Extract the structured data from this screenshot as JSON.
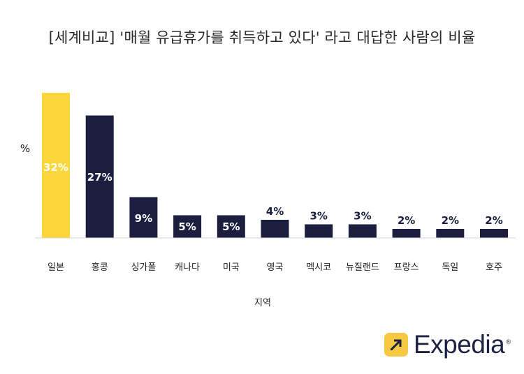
{
  "chart_data": {
    "type": "bar",
    "title": "[세계비교] '매월 유급휴가를 취득하고 있다' 라고 대답한 사람의 비율",
    "xlabel": "지역",
    "ylabel": "%",
    "categories": [
      "일본",
      "홍콩",
      "싱가폴",
      "캐나다",
      "미국",
      "영국",
      "멕시코",
      "뉴질랜드",
      "프랑스",
      "독일",
      "호주"
    ],
    "values": [
      32,
      27,
      9,
      5,
      5,
      4,
      3,
      3,
      2,
      2,
      2
    ],
    "data_labels": [
      "32%",
      "27%",
      "9%",
      "5%",
      "5%",
      "4%",
      "3%",
      "3%",
      "2%",
      "2%",
      "2%"
    ],
    "ylim": [
      0,
      32
    ],
    "grid": false,
    "colors": {
      "highlight": "#fbd63a",
      "bar": "#1b1e3f",
      "label_on_dark": "#ffffff",
      "label_on_light": "#ffffff",
      "label_above": "#1b1e3f"
    }
  },
  "brand": {
    "name": "Expedia",
    "mark": "®",
    "icon": "expedia-arrow-icon",
    "badge_color": "#f7c842"
  }
}
